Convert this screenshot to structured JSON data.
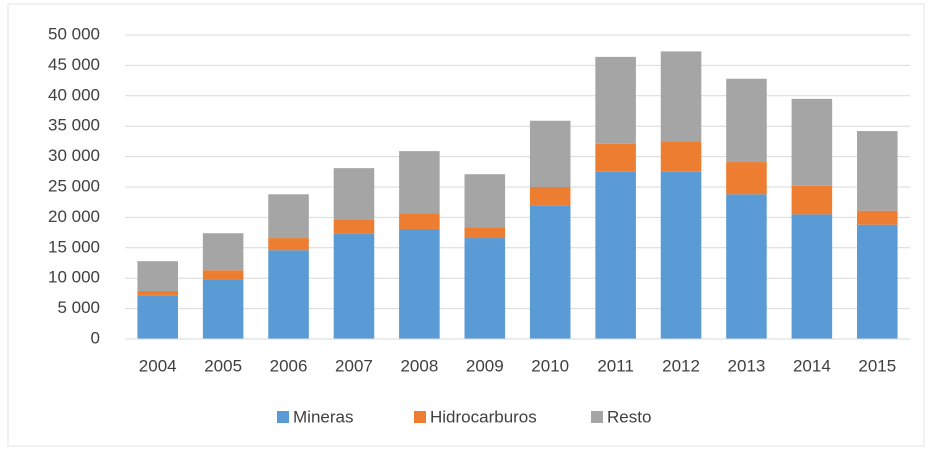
{
  "chart_data": {
    "type": "stacked_bar",
    "categories": [
      "2004",
      "2005",
      "2006",
      "2007",
      "2008",
      "2009",
      "2010",
      "2011",
      "2012",
      "2013",
      "2014",
      "2015"
    ],
    "series": [
      {
        "name": "Mineras",
        "color": "#5b9bd5",
        "values": [
          7200,
          9800,
          14600,
          17400,
          18100,
          16600,
          22000,
          27500,
          27500,
          23800,
          20500,
          18800
        ]
      },
      {
        "name": "Hidrocarburos",
        "color": "#ed7d31",
        "values": [
          700,
          1500,
          2000,
          2300,
          2600,
          1800,
          3000,
          4600,
          5000,
          5300,
          4700,
          2300
        ]
      },
      {
        "name": "Resto",
        "color": "#a5a5a5",
        "values": [
          4900,
          6100,
          7200,
          8400,
          10200,
          8700,
          10900,
          14300,
          14800,
          13700,
          14300,
          13100
        ]
      }
    ],
    "ylim": [
      0,
      50000
    ],
    "yticks": [
      0,
      {
        "value": 5000,
        "label": "5 000"
      },
      {
        "value": 10000,
        "label": "10 000"
      },
      {
        "value": 15000,
        "label": "15 000"
      },
      {
        "value": 20000,
        "label": "20 000"
      },
      {
        "value": 25000,
        "label": "25 000"
      },
      {
        "value": 30000,
        "label": "30 000"
      },
      {
        "value": 35000,
        "label": "35 000"
      },
      {
        "value": 40000,
        "label": "40 000"
      },
      {
        "value": 45000,
        "label": "45 000"
      },
      {
        "value": 50000,
        "label": "50 000"
      }
    ],
    "grid": true,
    "legend": "bottom"
  }
}
